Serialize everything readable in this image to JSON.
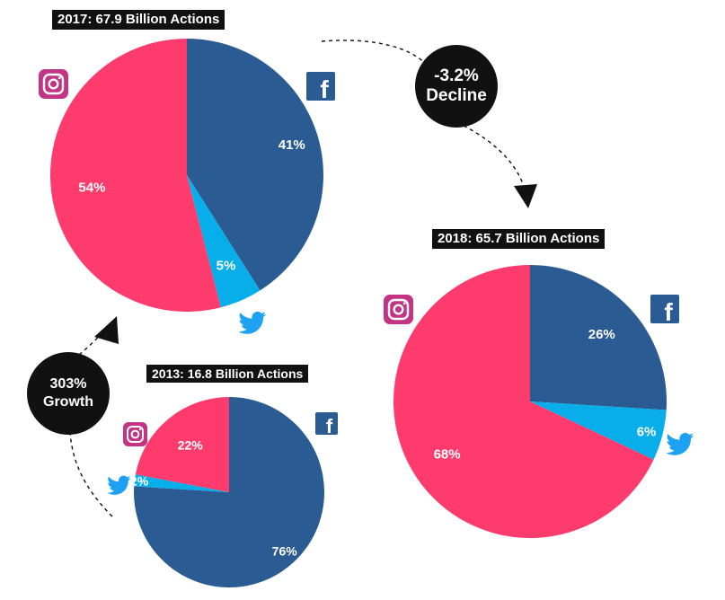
{
  "chart_data": [
    {
      "type": "pie",
      "title": "2017: 67.9 Billion Actions",
      "slices": [
        {
          "label": "Facebook",
          "value": 41,
          "display": "41%",
          "color": "#2a5b93"
        },
        {
          "label": "Twitter",
          "value": 5,
          "display": "5%",
          "color": "#08aee9"
        },
        {
          "label": "Instagram",
          "value": 54,
          "display": "54%",
          "color": "#fd3b6d"
        }
      ]
    },
    {
      "type": "pie",
      "title": "2018: 65.7 Billion Actions",
      "slices": [
        {
          "label": "Facebook",
          "value": 26,
          "display": "26%",
          "color": "#2a5b93"
        },
        {
          "label": "Twitter",
          "value": 6,
          "display": "6%",
          "color": "#08aee9"
        },
        {
          "label": "Instagram",
          "value": 68,
          "display": "68%",
          "color": "#fd3b6d"
        }
      ]
    },
    {
      "type": "pie",
      "title": "2013: 16.8 Billion Actions",
      "slices": [
        {
          "label": "Facebook",
          "value": 76,
          "display": "76%",
          "color": "#2a5b93"
        },
        {
          "label": "Twitter",
          "value": 2,
          "display": "2%",
          "color": "#08aee9"
        },
        {
          "label": "Instagram",
          "value": 22,
          "display": "22%",
          "color": "#fd3b6d"
        }
      ]
    }
  ],
  "annotations": {
    "decline": {
      "line1": "-3.2%",
      "line2": "Decline"
    },
    "growth": {
      "line1": "303%",
      "line2": "Growth"
    }
  },
  "icons": {
    "facebook": "facebook-icon",
    "twitter": "twitter-icon",
    "instagram": "instagram-icon"
  },
  "colors": {
    "facebook": "#2a5b93",
    "twitter": "#08aee9",
    "instagram": "#fd3b6d",
    "label_bg": "#111111"
  }
}
